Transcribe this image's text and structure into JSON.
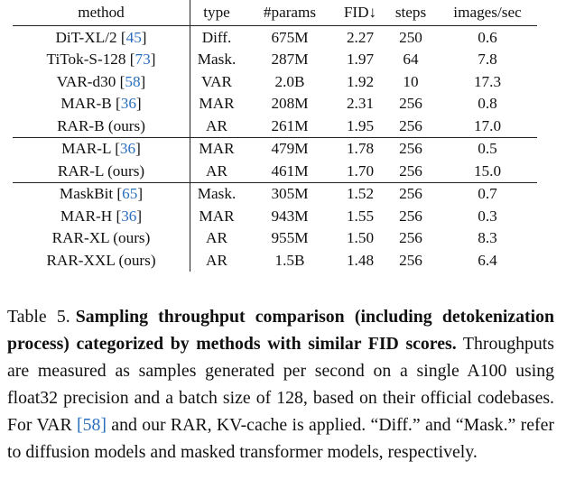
{
  "table": {
    "headers": [
      "method",
      "type",
      "#params",
      "FID↓",
      "steps",
      "images/sec"
    ],
    "rows": [
      {
        "method": "DiT-XL/2",
        "cite": "45",
        "suffix": "",
        "type": "Diff.",
        "params": "675M",
        "fid": "2.27",
        "steps": "250",
        "ips": "0.6",
        "group_end": false
      },
      {
        "method": "TiTok-S-128",
        "cite": "73",
        "suffix": "",
        "type": "Mask.",
        "params": "287M",
        "fid": "1.97",
        "steps": "64",
        "ips": "7.8",
        "group_end": false
      },
      {
        "method": "VAR-d30",
        "cite": "58",
        "suffix": "",
        "type": "VAR",
        "params": "2.0B",
        "fid": "1.92",
        "steps": "10",
        "ips": "17.3",
        "group_end": false
      },
      {
        "method": "MAR-B",
        "cite": "36",
        "suffix": "",
        "type": "MAR",
        "params": "208M",
        "fid": "2.31",
        "steps": "256",
        "ips": "0.8",
        "group_end": false
      },
      {
        "method": "RAR-B (ours)",
        "cite": "",
        "suffix": "",
        "type": "AR",
        "params": "261M",
        "fid": "1.95",
        "steps": "256",
        "ips": "17.0",
        "group_end": true
      },
      {
        "method": "MAR-L",
        "cite": "36",
        "suffix": "",
        "type": "MAR",
        "params": "479M",
        "fid": "1.78",
        "steps": "256",
        "ips": "0.5",
        "group_end": false
      },
      {
        "method": "RAR-L (ours)",
        "cite": "",
        "suffix": "",
        "type": "AR",
        "params": "461M",
        "fid": "1.70",
        "steps": "256",
        "ips": "15.0",
        "group_end": true
      },
      {
        "method": "MaskBit",
        "cite": "65",
        "suffix": "",
        "type": "Mask.",
        "params": "305M",
        "fid": "1.52",
        "steps": "256",
        "ips": "0.7",
        "group_end": false
      },
      {
        "method": "MAR-H",
        "cite": "36",
        "suffix": "",
        "type": "MAR",
        "params": "943M",
        "fid": "1.55",
        "steps": "256",
        "ips": "0.3",
        "group_end": false
      },
      {
        "method": "RAR-XL (ours)",
        "cite": "",
        "suffix": "",
        "type": "AR",
        "params": "955M",
        "fid": "1.50",
        "steps": "256",
        "ips": "8.3",
        "group_end": false
      },
      {
        "method": "RAR-XXL (ours)",
        "cite": "",
        "suffix": "",
        "type": "AR",
        "params": "1.5B",
        "fid": "1.48",
        "steps": "256",
        "ips": "6.4",
        "group_end": false
      }
    ]
  },
  "caption": {
    "label": "Table 5.",
    "bold": "Sampling throughput comparison (including de­tokenization process) categorized by methods with similar FID scores.",
    "text_1": " Throughputs are measured as samples generated per sec­ond on a single A100 using float32 precision and a batch size of 128, based on their official codebases. For VAR ",
    "cite": "[58]",
    "text_2": " and our RAR, KV-cache is applied. “Diff.” and “Mask.” refer to diffusion mod­els and masked transformer models, respectively."
  },
  "colors": {
    "citation": "#2a6fbd",
    "text": "#111111"
  }
}
